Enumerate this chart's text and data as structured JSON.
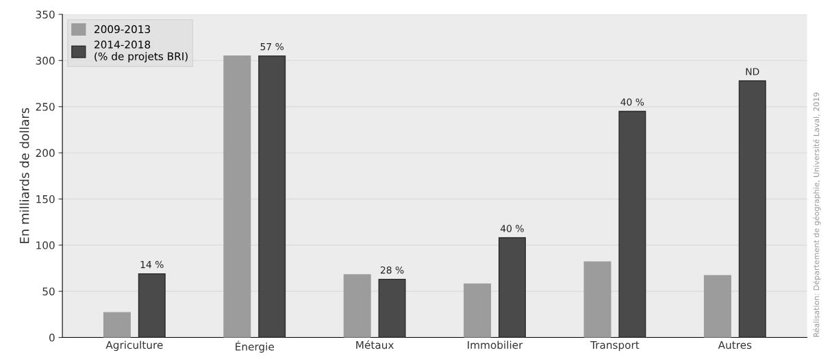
{
  "chart_data": {
    "type": "bar",
    "categories": [
      "Agriculture",
      "Énergie",
      "Métaux",
      "Immobilier",
      "Transport",
      "Autres"
    ],
    "ylabel": "En milliards de dollars",
    "series": [
      {
        "name": "2009-2013",
        "color": "#9c9c9c",
        "values": [
          27,
          305,
          68,
          58,
          82,
          67
        ]
      },
      {
        "name": "2014-2018\n(% de projets BRI)",
        "color": "#4a4a4a",
        "values": [
          69,
          305,
          63,
          108,
          245,
          278
        ]
      }
    ],
    "ylim": [
      0,
      350
    ],
    "yticks": [
      0,
      50,
      100,
      150,
      200,
      250,
      300,
      350
    ],
    "grid": "y",
    "legend": "top left",
    "annotations": [
      "14 %",
      "57 %",
      "28 %",
      "40 %",
      "40 %",
      "ND",
      "Réalisation: Département de géographie, Université Laval, 2019"
    ]
  }
}
